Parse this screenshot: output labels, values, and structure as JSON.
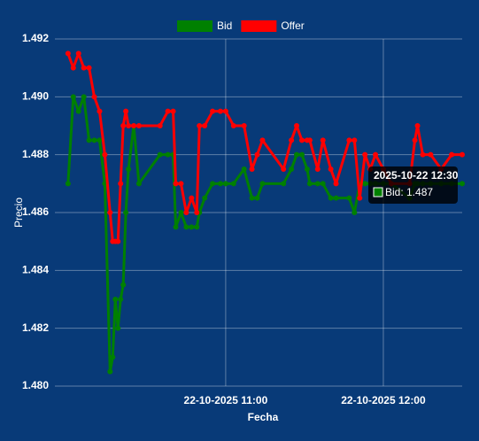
{
  "chart_data": {
    "type": "line",
    "x_label": "Fecha",
    "y_label": "Precio",
    "x": [
      "22-10-2025 10:00",
      "22-10-2025 10:02",
      "22-10-2025 10:04",
      "22-10-2025 10:06",
      "22-10-2025 10:08",
      "22-10-2025 10:10",
      "22-10-2025 10:12",
      "22-10-2025 10:14",
      "22-10-2025 10:16",
      "22-10-2025 10:17",
      "22-10-2025 10:18",
      "22-10-2025 10:19",
      "22-10-2025 10:20",
      "22-10-2025 10:21",
      "22-10-2025 10:22",
      "22-10-2025 10:23",
      "22-10-2025 10:25",
      "22-10-2025 10:27",
      "22-10-2025 10:35",
      "22-10-2025 10:38",
      "22-10-2025 10:40",
      "22-10-2025 10:41",
      "22-10-2025 10:43",
      "22-10-2025 10:45",
      "22-10-2025 10:47",
      "22-10-2025 10:49",
      "22-10-2025 10:50",
      "22-10-2025 10:52",
      "22-10-2025 10:55",
      "22-10-2025 10:58",
      "22-10-2025 11:00",
      "22-10-2025 11:03",
      "22-10-2025 11:07",
      "22-10-2025 11:10",
      "22-10-2025 11:12",
      "22-10-2025 11:14",
      "22-10-2025 11:22",
      "22-10-2025 11:25",
      "22-10-2025 11:27",
      "22-10-2025 11:29",
      "22-10-2025 11:31",
      "22-10-2025 11:32",
      "22-10-2025 11:35",
      "22-10-2025 11:37",
      "22-10-2025 11:40",
      "22-10-2025 11:42",
      "22-10-2025 11:47",
      "22-10-2025 11:49",
      "22-10-2025 11:51",
      "22-10-2025 11:53",
      "22-10-2025 11:55",
      "22-10-2025 11:57",
      "22-10-2025 12:00",
      "22-10-2025 12:03",
      "22-10-2025 12:10",
      "22-10-2025 12:12",
      "22-10-2025 12:13",
      "22-10-2025 12:15",
      "22-10-2025 12:18",
      "22-10-2025 12:22",
      "22-10-2025 12:26",
      "22-10-2025 12:30"
    ],
    "series": [
      {
        "name": "Bid",
        "color": "#008000",
        "values": [
          1.487,
          1.49,
          1.4895,
          1.49,
          1.4885,
          1.4885,
          1.4885,
          1.487,
          1.4805,
          1.481,
          1.483,
          1.482,
          1.483,
          1.4835,
          1.486,
          1.4875,
          1.489,
          1.487,
          1.488,
          1.488,
          1.488,
          1.4855,
          1.486,
          1.4855,
          1.4855,
          1.4855,
          1.486,
          1.4865,
          1.487,
          1.487,
          1.487,
          1.487,
          1.4875,
          1.4865,
          1.4865,
          1.487,
          1.487,
          1.4875,
          1.488,
          1.488,
          1.4875,
          1.487,
          1.487,
          1.487,
          1.4865,
          1.4865,
          1.4865,
          1.486,
          1.487,
          1.487,
          1.487,
          1.487,
          1.487,
          1.487,
          1.4865,
          1.487,
          1.487,
          1.487,
          1.487,
          1.487,
          1.487,
          1.487
        ]
      },
      {
        "name": "Offer",
        "color": "#ff0000",
        "values": [
          1.4915,
          1.491,
          1.4915,
          1.491,
          1.491,
          1.49,
          1.4895,
          1.488,
          1.486,
          1.485,
          1.485,
          1.485,
          1.487,
          1.489,
          1.4895,
          1.489,
          1.489,
          1.489,
          1.489,
          1.4895,
          1.4895,
          1.487,
          1.487,
          1.486,
          1.4865,
          1.486,
          1.489,
          1.489,
          1.4895,
          1.4895,
          1.4895,
          1.489,
          1.489,
          1.4875,
          1.488,
          1.4885,
          1.4875,
          1.4885,
          1.489,
          1.4885,
          1.4885,
          1.4885,
          1.4875,
          1.4885,
          1.4875,
          1.487,
          1.4885,
          1.4885,
          1.4865,
          1.488,
          1.4875,
          1.488,
          1.4875,
          1.487,
          1.487,
          1.4885,
          1.489,
          1.488,
          1.488,
          1.4875,
          1.488,
          1.488
        ]
      }
    ],
    "xlim": [
      "22-10-2025 09:55",
      "22-10-2025 12:30"
    ],
    "xticks": [
      "22-10-2025 11:00",
      "22-10-2025 12:00"
    ],
    "ylim": [
      1.48,
      1.492
    ],
    "yticks": [
      {
        "value": 1.48,
        "label": "1.480"
      },
      1.482,
      1.484,
      1.486,
      1.488,
      {
        "value": 1.49,
        "label": "1.490"
      },
      1.492
    ],
    "grid": true,
    "legend": "top",
    "tooltip": {
      "title": "2025-10-22 12:30",
      "label": "Bid: 1.487"
    }
  }
}
